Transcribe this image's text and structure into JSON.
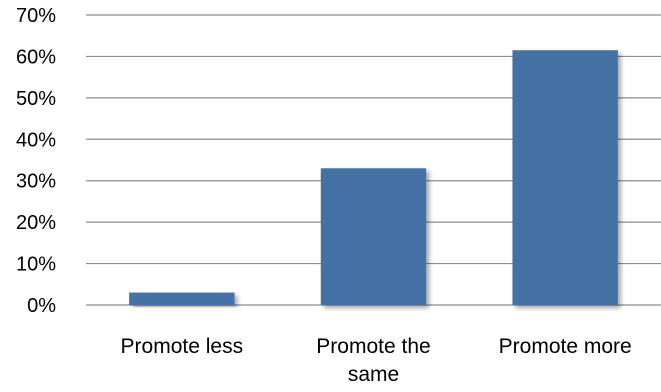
{
  "chart_data": {
    "type": "bar",
    "title": "",
    "xlabel": "",
    "ylabel": "",
    "categories": [
      [
        "Promote less"
      ],
      [
        "Promote the",
        "same"
      ],
      [
        "Promote more"
      ]
    ],
    "values": [
      3,
      33,
      61.5
    ],
    "ylim": [
      0,
      70
    ],
    "yticks": [
      {
        "value": 0,
        "label": "0%"
      },
      {
        "value": 10,
        "label": "10%"
      },
      {
        "value": 20,
        "label": "20%"
      },
      {
        "value": 30,
        "label": "30%"
      },
      {
        "value": 40,
        "label": "40%"
      },
      {
        "value": 50,
        "label": "50%"
      },
      {
        "value": 60,
        "label": "60%"
      },
      {
        "value": 70,
        "label": "70%"
      }
    ],
    "grid": true,
    "legend": "none",
    "bar_color": "#4472A4",
    "grid_color": "#8C8C8C"
  }
}
